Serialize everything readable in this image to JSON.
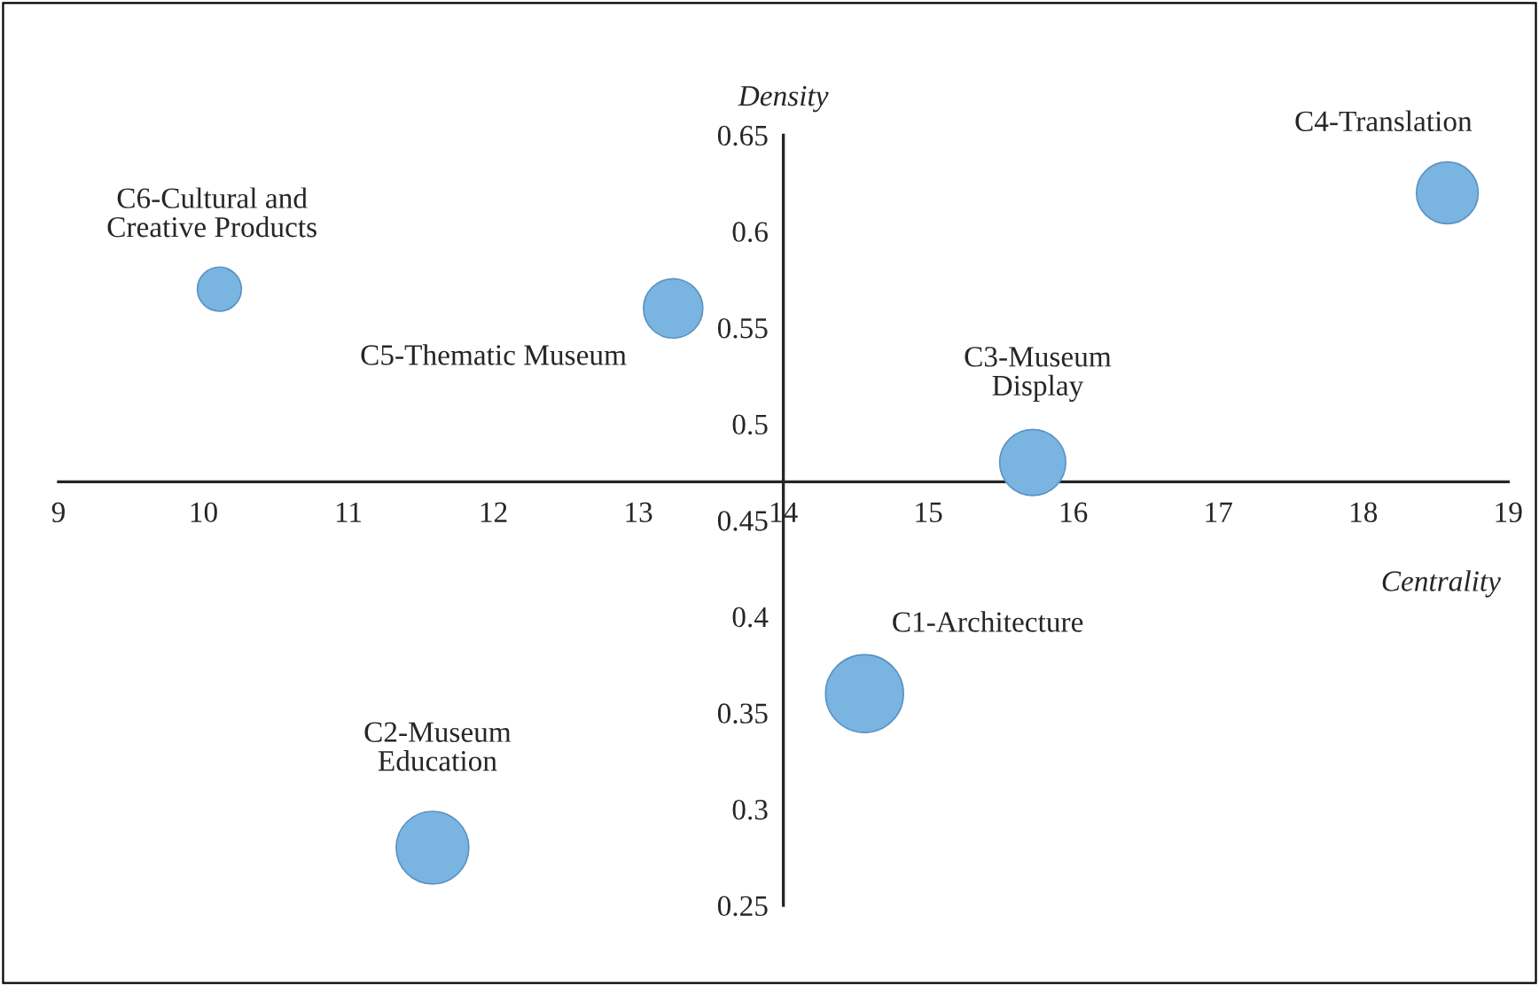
{
  "chart_data": {
    "type": "bubble",
    "xlabel": "Centrality",
    "ylabel": "Density",
    "x": [
      14.56,
      11.58,
      15.72,
      18.58,
      13.24,
      10.11
    ],
    "values": [
      0.36,
      0.28,
      0.48,
      0.62,
      0.56,
      0.57
    ],
    "sizes": [
      1,
      0.87,
      0.72,
      0.63,
      0.58,
      0.32
    ],
    "color": "#7ab4e0",
    "xlim": [
      9,
      19
    ],
    "ylim": [
      0.25,
      0.65
    ],
    "xticks": [
      9,
      10,
      11,
      12,
      13,
      14,
      15,
      16,
      17,
      18,
      19
    ],
    "yticks": [
      0.25,
      0.3,
      0.35,
      0.4,
      0.45,
      0.5,
      0.55,
      0.6,
      0.65
    ],
    "grid": false,
    "legend": false,
    "annotations": [
      {
        "text": "C1-Architecture",
        "x": 14.56,
        "y": 0.36
      },
      {
        "text": "C2-Museum\nEducation",
        "x": 11.58,
        "y": 0.28
      },
      {
        "text": "C3-Museum\nDisplay",
        "x": 15.72,
        "y": 0.48
      },
      {
        "text": "C4-Translation",
        "x": 18.58,
        "y": 0.62
      },
      {
        "text": "C5-Thematic Museum",
        "x": 13.24,
        "y": 0.56
      },
      {
        "text": "C6-Cultural and\nCreative Products",
        "x": 10.11,
        "y": 0.57
      }
    ]
  }
}
